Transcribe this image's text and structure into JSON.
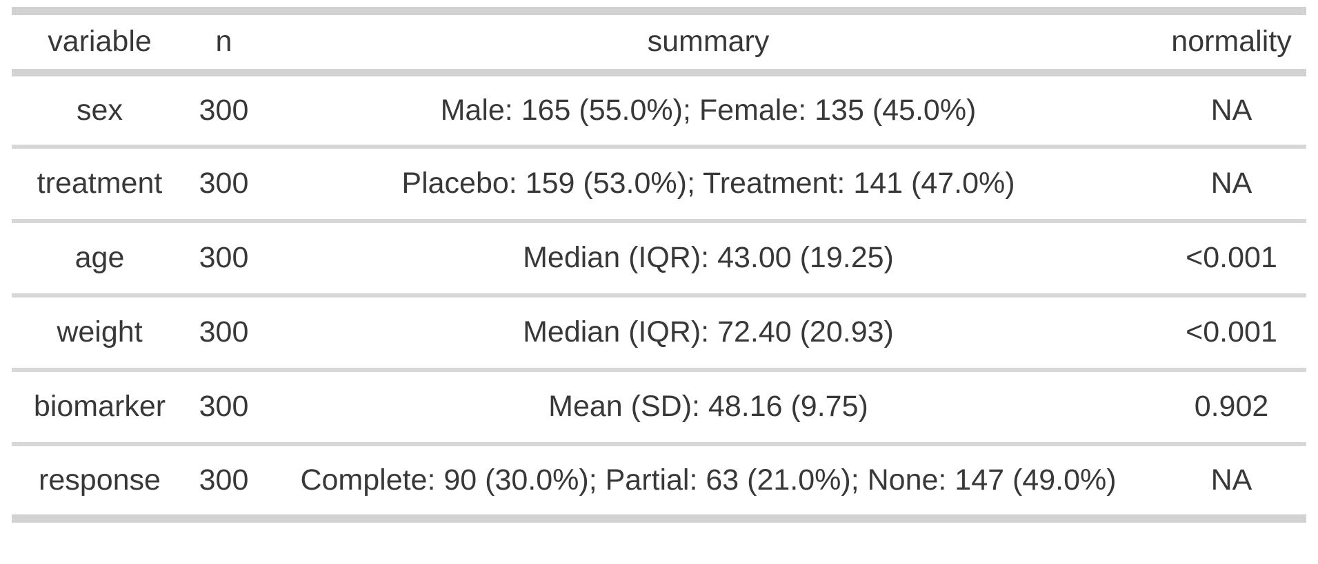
{
  "colors": {
    "background": "#ffffff",
    "text": "#383838",
    "outer_bar": "#d2d2d2",
    "header_separator": "#d2d2d2",
    "row_separator": "#d7d7d7"
  },
  "table": {
    "columns": [
      {
        "key": "variable",
        "label": "variable"
      },
      {
        "key": "n",
        "label": "n"
      },
      {
        "key": "summary",
        "label": "summary"
      },
      {
        "key": "normality",
        "label": "normality"
      }
    ],
    "rows": [
      {
        "variable": "sex",
        "n": "300",
        "summary": "Male: 165 (55.0%); Female: 135 (45.0%)",
        "normality": "NA"
      },
      {
        "variable": "treatment",
        "n": "300",
        "summary": "Placebo: 159 (53.0%); Treatment: 141 (47.0%)",
        "normality": "NA"
      },
      {
        "variable": "age",
        "n": "300",
        "summary": "Median (IQR): 43.00 (19.25)",
        "normality": "<0.001"
      },
      {
        "variable": "weight",
        "n": "300",
        "summary": "Median (IQR): 72.40 (20.93)",
        "normality": "<0.001"
      },
      {
        "variable": "biomarker",
        "n": "300",
        "summary": "Mean (SD): 48.16 (9.75)",
        "normality": "0.902"
      },
      {
        "variable": "response",
        "n": "300",
        "summary": "Complete: 90 (30.0%); Partial: 63 (21.0%); None: 147 (49.0%)",
        "normality": "NA"
      }
    ]
  },
  "chart_data": {
    "type": "table",
    "columns": [
      "variable",
      "n",
      "summary",
      "normality"
    ],
    "rows": [
      [
        "sex",
        300,
        "Male: 165 (55.0%); Female: 135 (45.0%)",
        "NA"
      ],
      [
        "treatment",
        300,
        "Placebo: 159 (53.0%); Treatment: 141 (47.0%)",
        "NA"
      ],
      [
        "age",
        300,
        "Median (IQR): 43.00 (19.25)",
        "<0.001"
      ],
      [
        "weight",
        300,
        "Median (IQR): 72.40 (20.93)",
        "<0.001"
      ],
      [
        "biomarker",
        300,
        "Mean (SD): 48.16 (9.75)",
        "0.902"
      ],
      [
        "response",
        300,
        "Complete: 90 (30.0%); Partial: 63 (21.0%); None: 147 (49.0%)",
        "NA"
      ]
    ]
  }
}
